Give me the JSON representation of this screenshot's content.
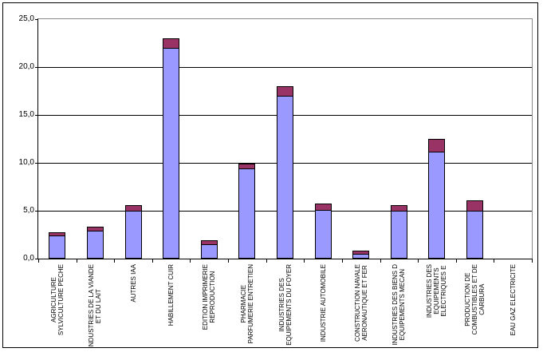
{
  "chart_data": {
    "type": "bar",
    "stacked": true,
    "title": "",
    "xlabel": "",
    "ylabel": "",
    "ylim": [
      0,
      25
    ],
    "ytick_step": 5,
    "ytick_labels": [
      "0,0",
      "5,0",
      "10,0",
      "15,0",
      "20,0",
      "25,0"
    ],
    "grid": true,
    "legend": "none",
    "categories": [
      "AGRICULTURE\nSYLVICULTURE PECHE",
      "INDUSTRIES DE LA VIANDE\nET DU LAIT",
      "AUTRES IAA",
      "HABILLEMENT CUIR",
      "EDITION IMPRIMERIE\nREPRODUCTION",
      "PHARMACIE\nPARFUMERIE ENTRETIEN",
      "INDUSTRIES DES\nEQUIPEMENTS DU FOYER",
      "INDUSTRIE AUTOMOBILE",
      "CONSTRUCTION NAVALE\nAERONAUTIQUE ET FER",
      "INDUSTRIES DES BIENS D\nEQUIPEMENTS MECAN",
      "INDUSTRIES DES\nEQUIPEMENTS\nELECTRIQUES E",
      "PRODUCTION DE\nCOMBUSTIBLES ET DE\nCARBURA",
      "EAU GAZ ELECTRICITE"
    ],
    "series": [
      {
        "name": "bottom-segment",
        "color": "#9999FF",
        "values": [
          2.4,
          2.9,
          5.0,
          22.0,
          1.5,
          9.4,
          17.0,
          5.1,
          0.5,
          5.0,
          11.2,
          5.0,
          0
        ]
      },
      {
        "name": "top-segment",
        "color": "#993366",
        "values": [
          0.3,
          0.4,
          0.6,
          1.0,
          0.4,
          0.5,
          1.0,
          0.7,
          0.3,
          0.6,
          1.3,
          1.1,
          0
        ]
      }
    ]
  },
  "colors": {
    "background": "#FFFFFF",
    "chart_border": "#000000",
    "plot_border_gray": "#888888",
    "gridline": "#000000",
    "axis": "#000000",
    "series_bottom": "#9999FF",
    "series_top": "#993366"
  }
}
